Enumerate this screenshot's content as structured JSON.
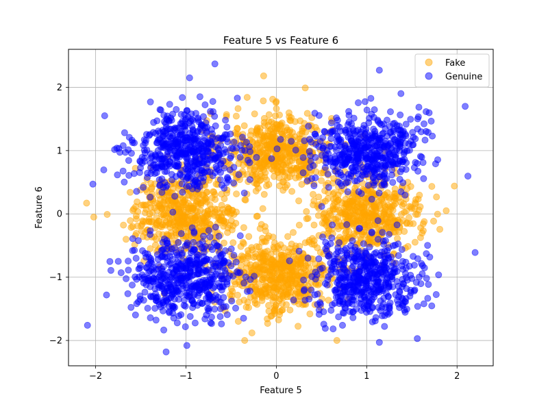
{
  "chart_data": {
    "type": "scatter",
    "title": "Feature 5 vs Feature 6",
    "xlabel": "Feature 5",
    "ylabel": "Feature 6",
    "xlim": [
      -2.3,
      2.4
    ],
    "ylim": [
      -2.4,
      2.6
    ],
    "xticks": [
      -2,
      -1,
      0,
      1,
      2
    ],
    "xtick_labels": [
      "−2",
      "−1",
      "0",
      "1",
      "2"
    ],
    "yticks": [
      -2,
      -1,
      0,
      1,
      2
    ],
    "ytick_labels": [
      "−2",
      "−1",
      "0",
      "1",
      "2"
    ],
    "grid": true,
    "legend_position": "top-right",
    "series": [
      {
        "name": "Fake",
        "color": "#ffa500",
        "alpha": 0.5,
        "clusters": [
          {
            "center": [
              0,
              1
            ],
            "spread": 0.3,
            "count": 500
          },
          {
            "center": [
              -1,
              0
            ],
            "spread": 0.3,
            "count": 500
          },
          {
            "center": [
              1,
              0
            ],
            "spread": 0.3,
            "count": 500
          },
          {
            "center": [
              0,
              -1
            ],
            "spread": 0.3,
            "count": 500
          }
        ],
        "points": [
          [
            -2.1,
            0.17
          ],
          [
            -2.02,
            -0.05
          ],
          [
            -0.14,
            2.18
          ],
          [
            0.32,
            1.99
          ],
          [
            1.97,
            0.44
          ],
          [
            0.67,
            -2.0
          ],
          [
            -0.35,
            -2.0
          ],
          [
            -0.27,
            -1.88
          ],
          [
            1.88,
            0.05
          ],
          [
            -1.56,
            0.72
          ]
        ]
      },
      {
        "name": "Genuine",
        "color": "#0000ff",
        "alpha": 0.5,
        "clusters": [
          {
            "center": [
              -1,
              1
            ],
            "spread": 0.3,
            "count": 500
          },
          {
            "center": [
              1,
              1
            ],
            "spread": 0.3,
            "count": 500
          },
          {
            "center": [
              -1,
              -1
            ],
            "spread": 0.3,
            "count": 500
          },
          {
            "center": [
              1,
              -1
            ],
            "spread": 0.3,
            "count": 500
          }
        ],
        "points": [
          [
            -0.68,
            2.37
          ],
          [
            -0.96,
            2.15
          ],
          [
            1.14,
            2.27
          ],
          [
            2.2,
            -0.61
          ],
          [
            -2.09,
            -1.76
          ],
          [
            -1.22,
            -2.18
          ],
          [
            -0.99,
            -2.08
          ],
          [
            1.14,
            -2.03
          ],
          [
            1.56,
            -1.97
          ],
          [
            2.09,
            1.7
          ],
          [
            -1.9,
            1.55
          ],
          [
            -2.03,
            0.47
          ]
        ]
      }
    ]
  }
}
